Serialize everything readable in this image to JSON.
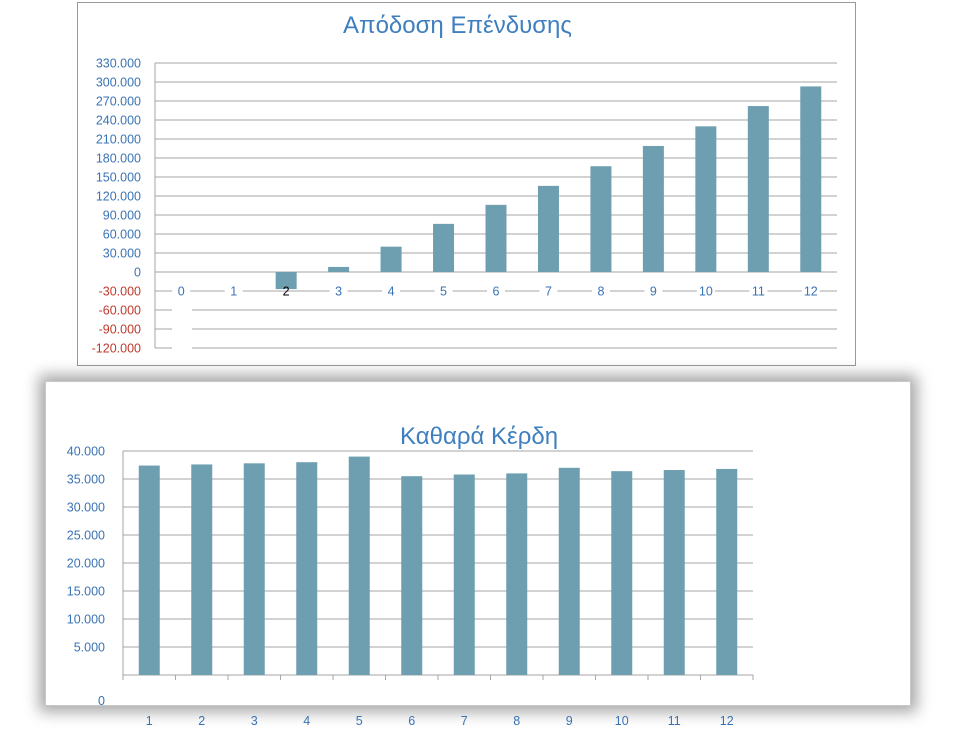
{
  "colors": {
    "bar": "#6d9fb0",
    "axis_text_blue": "#3a73b5",
    "axis_text_red": "#c0392b",
    "grid": "#a6a6a6",
    "title": "#3f7fbf"
  },
  "chart_data": [
    {
      "type": "bar",
      "title": "Απόδοση Επένδυσης",
      "categories": [
        "0",
        "1",
        "2",
        "3",
        "4",
        "5",
        "6",
        "7",
        "8",
        "9",
        "10",
        "11",
        "12"
      ],
      "values": [
        0,
        0,
        -27000,
        8000,
        40000,
        76000,
        106000,
        136000,
        167000,
        199000,
        230000,
        262000,
        293000
      ],
      "ylim": [
        -120000,
        330000
      ],
      "yticks": [
        "330.000",
        "300.000",
        "270.000",
        "240.000",
        "210.000",
        "180.000",
        "150.000",
        "120.000",
        "90.000",
        "60.000",
        "30.000",
        "0",
        "-30.000",
        "-60.000",
        "-90.000",
        "-120.000"
      ],
      "grid": true,
      "legend": "none"
    },
    {
      "type": "bar",
      "title": "Καθαρά Κέρδη",
      "categories": [
        "1",
        "2",
        "3",
        "4",
        "5",
        "6",
        "7",
        "8",
        "9",
        "10",
        "11",
        "12"
      ],
      "values": [
        37400,
        37600,
        37800,
        38000,
        39000,
        35500,
        35800,
        36000,
        37000,
        36400,
        36600,
        36800
      ],
      "ylim": [
        0,
        40000
      ],
      "yticks": [
        "40.000",
        "35.000",
        "30.000",
        "25.000",
        "20.000",
        "15.000",
        "10.000",
        "5.000",
        "0"
      ],
      "grid": true,
      "legend": "none"
    }
  ]
}
